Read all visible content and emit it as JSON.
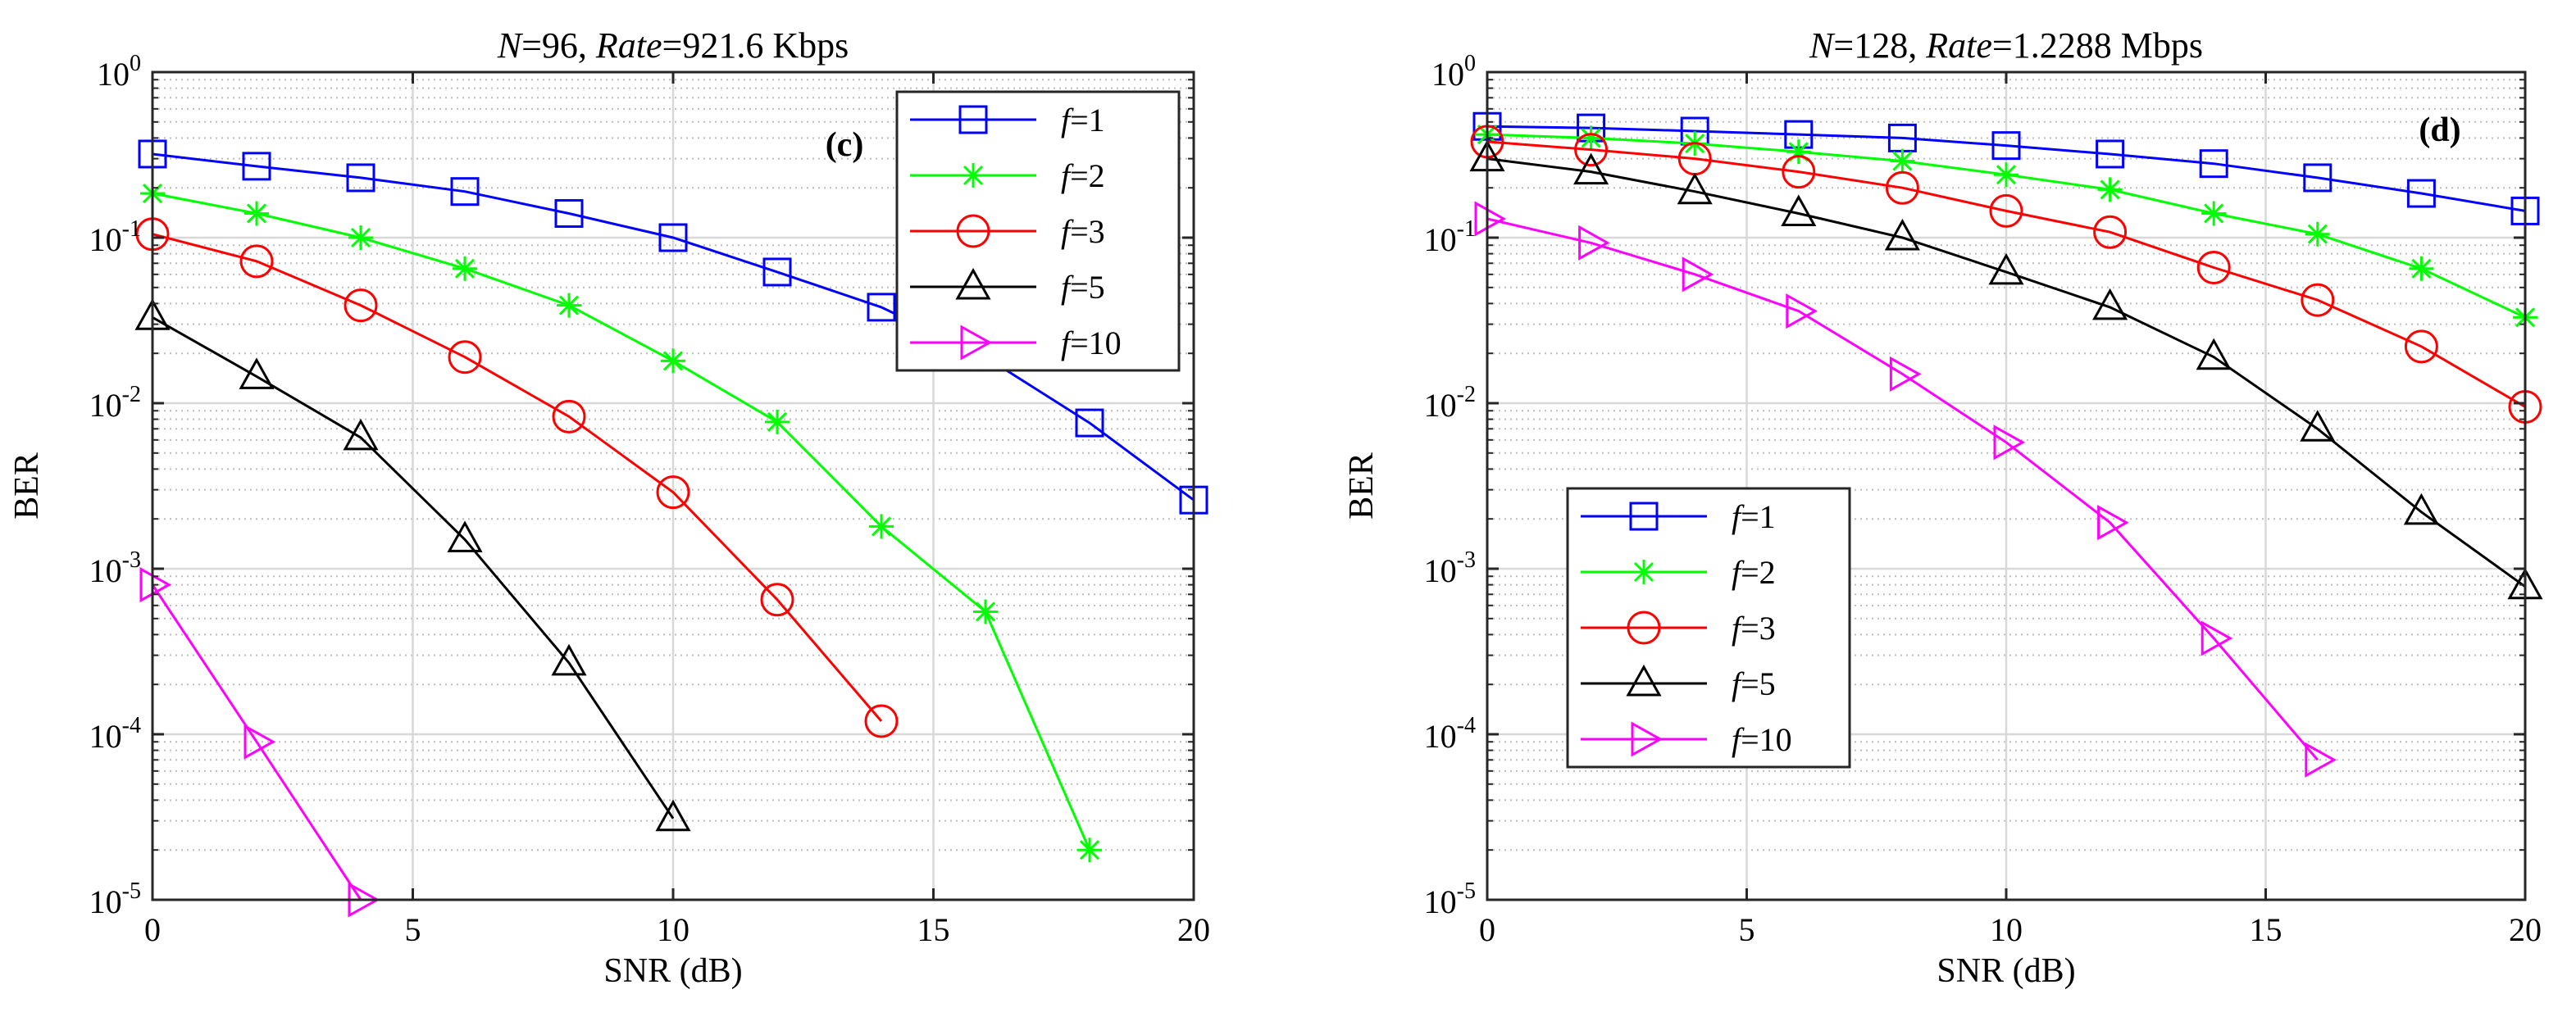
{
  "chart_data": [
    {
      "panel": "(c)",
      "type": "line",
      "title_parts": [
        {
          "text": "N",
          "italic": true
        },
        {
          "text": "=96, ",
          "italic": false
        },
        {
          "text": "Rate",
          "italic": true
        },
        {
          "text": "=921.6 Kbps",
          "italic": false
        }
      ],
      "xlabel": "SNR (dB)",
      "ylabel": "BER",
      "xlim": [
        0,
        20
      ],
      "ylim_log10": [
        -5,
        0
      ],
      "yscale": "log",
      "grid": true,
      "xticks": [
        "0",
        "5",
        "10",
        "15",
        "20"
      ],
      "yticks": [
        {
          "base": "10",
          "exp": "0"
        },
        {
          "base": "10",
          "exp": "-1"
        },
        {
          "base": "10",
          "exp": "-2"
        },
        {
          "base": "10",
          "exp": "-3"
        },
        {
          "base": "10",
          "exp": "-4"
        },
        {
          "base": "10",
          "exp": "-5"
        }
      ],
      "legend_position": "top-right",
      "series": [
        {
          "name": "f=1",
          "label_italic": "f",
          "label_rest": "=1",
          "color": "#0000ff",
          "marker": "square",
          "x": [
            0,
            2,
            4,
            6,
            8,
            10,
            12,
            14,
            16,
            18,
            20
          ],
          "y": [
            0.32,
            0.27,
            0.23,
            0.19,
            0.14,
            0.1,
            0.062,
            0.038,
            0.019,
            0.0076,
            0.0026
          ]
        },
        {
          "name": "f=2",
          "label_italic": "f",
          "label_rest": "=2",
          "color": "#00ff00",
          "marker": "asterisk",
          "x": [
            0,
            2,
            4,
            6,
            8,
            10,
            12,
            14,
            16,
            18
          ],
          "y": [
            0.185,
            0.14,
            0.1,
            0.065,
            0.039,
            0.018,
            0.0077,
            0.0018,
            0.00055,
            2e-05
          ]
        },
        {
          "name": "f=3",
          "label_italic": "f",
          "label_rest": "=3",
          "color": "#ff0000",
          "marker": "circle",
          "x": [
            0,
            2,
            4,
            6,
            8,
            10,
            12,
            14
          ],
          "y": [
            0.105,
            0.072,
            0.039,
            0.019,
            0.0083,
            0.0029,
            0.00065,
            0.00012
          ]
        },
        {
          "name": "f=5",
          "label_italic": "f",
          "label_rest": "=5",
          "color": "#000000",
          "marker": "triangle-up",
          "x": [
            0,
            2,
            4,
            6,
            8,
            10
          ],
          "y": [
            0.033,
            0.0145,
            0.0062,
            0.0015,
            0.00027,
            3.1e-05
          ]
        },
        {
          "name": "f=10",
          "label_italic": "f",
          "label_rest": "=10",
          "color": "#ff00ff",
          "marker": "triangle-right",
          "x": [
            0,
            2,
            4
          ],
          "y": [
            0.0008,
            9e-05,
            1e-05
          ]
        }
      ]
    },
    {
      "panel": "(d)",
      "type": "line",
      "title_parts": [
        {
          "text": "N",
          "italic": true
        },
        {
          "text": "=128, ",
          "italic": false
        },
        {
          "text": "Rate",
          "italic": true
        },
        {
          "text": "=1.2288 Mbps",
          "italic": false
        }
      ],
      "xlabel": "SNR (dB)",
      "ylabel": "BER",
      "xlim": [
        0,
        20
      ],
      "ylim_log10": [
        -5,
        0
      ],
      "yscale": "log",
      "grid": true,
      "xticks": [
        "0",
        "5",
        "10",
        "15",
        "20"
      ],
      "yticks": [
        {
          "base": "10",
          "exp": "0"
        },
        {
          "base": "10",
          "exp": "-1"
        },
        {
          "base": "10",
          "exp": "-2"
        },
        {
          "base": "10",
          "exp": "-3"
        },
        {
          "base": "10",
          "exp": "-4"
        },
        {
          "base": "10",
          "exp": "-5"
        }
      ],
      "legend_position": "bottom-left",
      "series": [
        {
          "name": "f=1",
          "label_italic": "f",
          "label_rest": "=1",
          "color": "#0000ff",
          "marker": "square",
          "x": [
            0,
            2,
            4,
            6,
            8,
            10,
            12,
            14,
            16,
            18,
            20
          ],
          "y": [
            0.47,
            0.46,
            0.44,
            0.42,
            0.4,
            0.36,
            0.32,
            0.28,
            0.23,
            0.185,
            0.145
          ]
        },
        {
          "name": "f=2",
          "label_italic": "f",
          "label_rest": "=2",
          "color": "#00ff00",
          "marker": "asterisk",
          "x": [
            0,
            2,
            4,
            6,
            8,
            10,
            12,
            14,
            16,
            18,
            20
          ],
          "y": [
            0.42,
            0.4,
            0.37,
            0.33,
            0.29,
            0.24,
            0.195,
            0.14,
            0.105,
            0.065,
            0.033
          ]
        },
        {
          "name": "f=3",
          "label_italic": "f",
          "label_rest": "=3",
          "color": "#ff0000",
          "marker": "circle",
          "x": [
            0,
            2,
            4,
            6,
            8,
            10,
            12,
            14,
            16,
            18,
            20
          ],
          "y": [
            0.38,
            0.34,
            0.3,
            0.25,
            0.2,
            0.145,
            0.108,
            0.066,
            0.042,
            0.022,
            0.0095
          ]
        },
        {
          "name": "f=5",
          "label_italic": "f",
          "label_rest": "=5",
          "color": "#000000",
          "marker": "triangle-up",
          "x": [
            0,
            2,
            4,
            6,
            8,
            10,
            12,
            14,
            16,
            18,
            20
          ],
          "y": [
            0.3,
            0.25,
            0.19,
            0.14,
            0.1,
            0.062,
            0.038,
            0.019,
            0.007,
            0.0022,
            0.00078
          ]
        },
        {
          "name": "f=10",
          "label_italic": "f",
          "label_rest": "=10",
          "color": "#ff00ff",
          "marker": "triangle-right",
          "x": [
            0,
            2,
            4,
            6,
            8,
            10,
            12,
            14,
            16
          ],
          "y": [
            0.13,
            0.093,
            0.06,
            0.036,
            0.015,
            0.0058,
            0.0019,
            0.00038,
            7e-05
          ]
        }
      ]
    }
  ]
}
